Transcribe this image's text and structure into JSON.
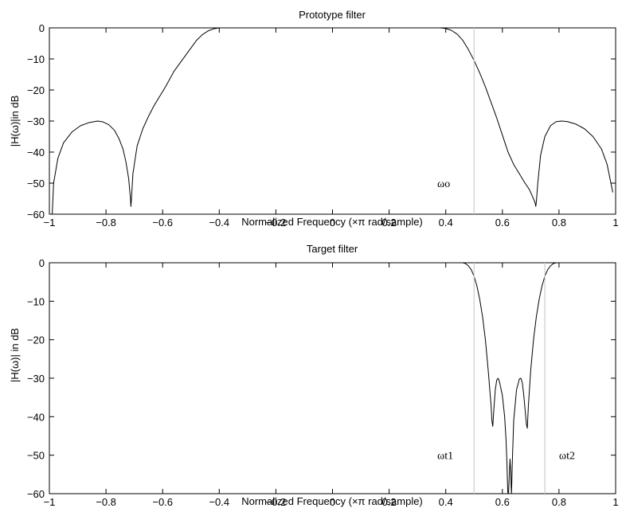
{
  "chart_data": [
    {
      "type": "line",
      "title": "Prototype filter",
      "xlabel": "Normalized Frequency  (×π rad/sample)",
      "ylabel": "|H(ω)|in dB",
      "xlim": [
        -1,
        1
      ],
      "ylim": [
        -60,
        0
      ],
      "xticks": [
        -1,
        -0.8,
        -0.6,
        -0.4,
        -0.2,
        0,
        0.2,
        0.4,
        0.6,
        0.8,
        1
      ],
      "xtick_labels": [
        "−1",
        "−0.8",
        "−0.6",
        "−0.4",
        "−0.2",
        "0",
        "0.2",
        "0.4",
        "0.6",
        "0.8",
        "1"
      ],
      "yticks": [
        0,
        -10,
        -20,
        -30,
        -40,
        -50,
        -60
      ],
      "ytick_labels": [
        "0",
        "−10",
        "−20",
        "−30",
        "−40",
        "−50",
        "−60"
      ],
      "grid": false,
      "series": [
        {
          "color": "#000000",
          "x": [
            -0.99,
            -0.985,
            -0.97,
            -0.95,
            -0.92,
            -0.89,
            -0.86,
            -0.83,
            -0.81,
            -0.79,
            -0.77,
            -0.755,
            -0.74,
            -0.73,
            -0.72,
            -0.714,
            -0.712,
            -0.71,
            -0.705,
            -0.69,
            -0.67,
            -0.65,
            -0.63,
            -0.61,
            -0.59,
            -0.575,
            -0.56,
            -0.54,
            -0.52,
            -0.5,
            -0.48,
            -0.46,
            -0.44,
            -0.42,
            -0.4,
            -0.38,
            -0.35,
            -0.3,
            -0.2,
            -0.1,
            0,
            0.1,
            0.2,
            0.3,
            0.35,
            0.38,
            0.4,
            0.42,
            0.44,
            0.46,
            0.48,
            0.5,
            0.52,
            0.54,
            0.56,
            0.58,
            0.6,
            0.62,
            0.64,
            0.66,
            0.68,
            0.695,
            0.705,
            0.712,
            0.716,
            0.718,
            0.72,
            0.725,
            0.735,
            0.75,
            0.77,
            0.79,
            0.81,
            0.83,
            0.86,
            0.89,
            0.92,
            0.95,
            0.97,
            0.99
          ],
          "y": [
            -60,
            -50,
            -42,
            -37,
            -33.5,
            -31.5,
            -30.5,
            -30,
            -30.3,
            -31.2,
            -33,
            -35.5,
            -39,
            -43,
            -48.5,
            -54.5,
            -57.5,
            -55,
            -47,
            -38,
            -32.5,
            -28.5,
            -25,
            -22,
            -19,
            -16.5,
            -14,
            -11.5,
            -9,
            -6.5,
            -4,
            -2.2,
            -1,
            -0.3,
            0,
            0,
            0,
            0,
            0,
            0,
            0,
            0,
            0,
            0,
            0,
            0,
            -0.2,
            -0.8,
            -2,
            -4,
            -7,
            -10.5,
            -14.5,
            -19,
            -24,
            -29,
            -34.5,
            -40,
            -44,
            -47,
            -50,
            -52,
            -54,
            -55.5,
            -56.5,
            -57.5,
            -56,
            -50,
            -41,
            -35,
            -31.5,
            -30.2,
            -30,
            -30.2,
            -31,
            -32.5,
            -35,
            -39,
            -44,
            -53
          ]
        },
        {
          "color": "#cccccc",
          "x": [
            0.5,
            0.5
          ],
          "y": [
            -60,
            0
          ]
        }
      ],
      "annotations": [
        {
          "text": "ωo",
          "x": 0.37,
          "y": -50
        }
      ]
    },
    {
      "type": "line",
      "title": "Target filter",
      "xlabel": "Normalized Frequency  (×π rad/sample)",
      "ylabel": "|H(ω)| in dB",
      "xlim": [
        -1,
        1
      ],
      "ylim": [
        -60,
        0
      ],
      "xticks": [
        -1,
        -0.8,
        -0.6,
        -0.4,
        -0.2,
        0,
        0.2,
        0.4,
        0.6,
        0.8,
        1
      ],
      "xtick_labels": [
        "−1",
        "−0.8",
        "−0.6",
        "−0.4",
        "−0.2",
        "0",
        "0.2",
        "0.4",
        "0.6",
        "0.8",
        "1"
      ],
      "yticks": [
        0,
        -10,
        -20,
        -30,
        -40,
        -50,
        -60
      ],
      "ytick_labels": [
        "0",
        "−10",
        "−20",
        "−30",
        "−40",
        "−50",
        "−60"
      ],
      "grid": false,
      "series": [
        {
          "color": "#000000",
          "x": [
            0.46,
            0.47,
            0.48,
            0.49,
            0.5,
            0.51,
            0.52,
            0.53,
            0.54,
            0.55,
            0.56,
            0.563,
            0.566,
            0.57,
            0.575,
            0.58,
            0.585,
            0.59,
            0.6,
            0.608,
            0.613,
            0.616,
            0.618,
            0.619,
            0.62,
            0.621,
            0.622,
            0.624,
            0.627,
            0.63,
            0.631,
            0.632,
            0.633,
            0.635,
            0.64,
            0.65,
            0.66,
            0.665,
            0.67,
            0.675,
            0.68,
            0.685,
            0.688,
            0.692,
            0.7,
            0.71,
            0.72,
            0.73,
            0.74,
            0.75,
            0.76,
            0.77,
            0.78,
            0.79
          ],
          "y": [
            0,
            -0.2,
            -0.8,
            -1.8,
            -3.5,
            -6,
            -9.5,
            -14,
            -20,
            -28,
            -37,
            -41,
            -42.5,
            -38,
            -33,
            -30.5,
            -30,
            -31,
            -34.5,
            -40,
            -46,
            -52,
            -57,
            -59.5,
            -60,
            -60,
            -59.5,
            -56,
            -51,
            -55,
            -58,
            -60,
            -58,
            -52,
            -41,
            -33,
            -30.2,
            -30,
            -31,
            -34,
            -38,
            -42,
            -43,
            -37,
            -28,
            -20,
            -14,
            -9.5,
            -6,
            -3.5,
            -1.8,
            -0.8,
            -0.2,
            0
          ]
        },
        {
          "color": "#cccccc",
          "x": [
            0.5,
            0.5
          ],
          "y": [
            -60,
            0
          ]
        },
        {
          "color": "#cccccc",
          "x": [
            0.75,
            0.75
          ],
          "y": [
            -60,
            0
          ]
        }
      ],
      "annotations": [
        {
          "text": "ωt1",
          "x": 0.37,
          "y": -50
        },
        {
          "text": "ωt2",
          "x": 0.8,
          "y": -50
        }
      ]
    }
  ]
}
